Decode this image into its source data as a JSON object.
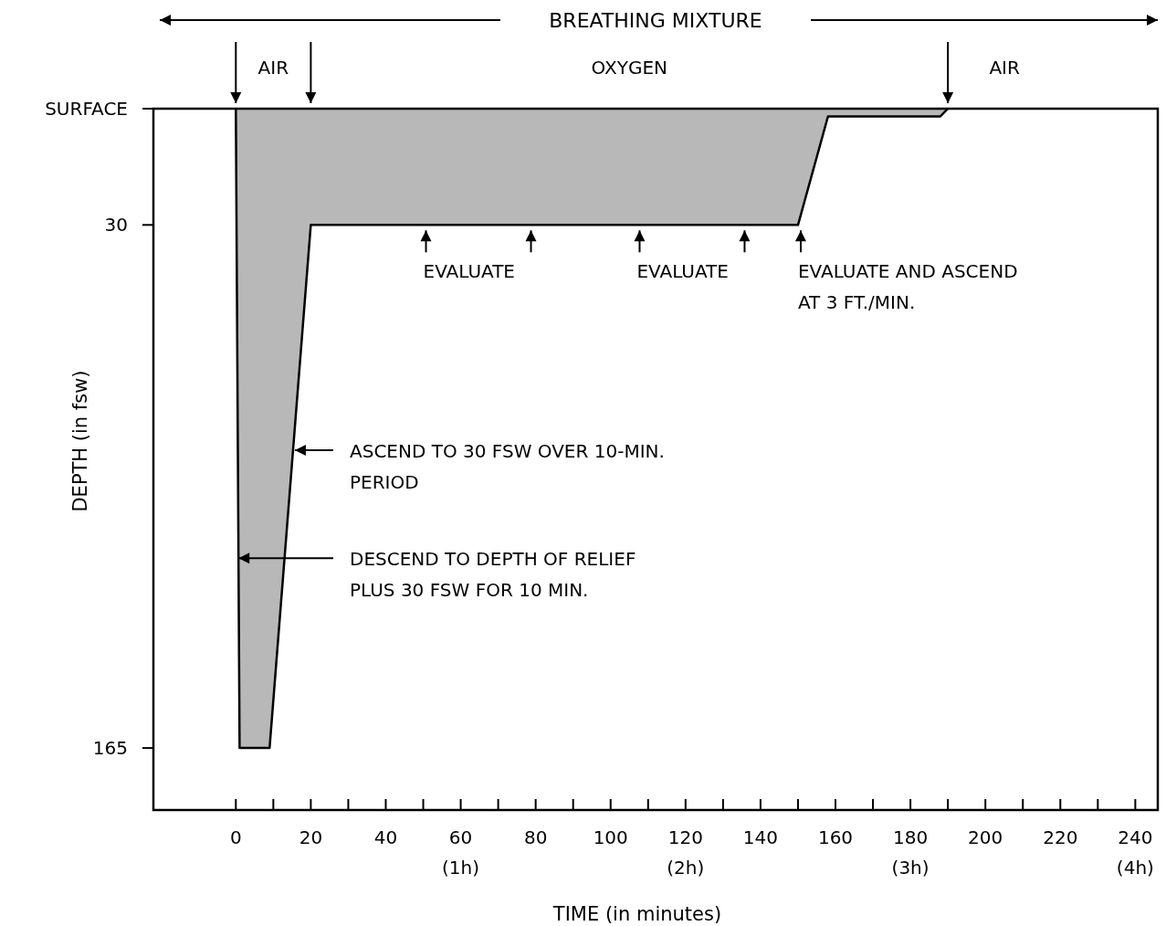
{
  "chart_data": {
    "type": "area",
    "xlabel": "TIME (in minutes)",
    "ylabel": "DEPTH (in fsw)",
    "x": [
      0,
      1,
      9,
      20,
      150,
      158,
      188,
      190
    ],
    "series": [
      {
        "color": "#b8b8b8",
        "values": [
          0,
          165,
          165,
          30,
          30,
          2,
          2,
          0
        ]
      }
    ],
    "xlim": [
      -22,
      246
    ],
    "ylim": [
      181,
      0
    ],
    "xticks": [
      {
        "value": 0,
        "label": "0"
      },
      {
        "value": 10,
        "label": null
      },
      {
        "value": 20,
        "label": "20"
      },
      {
        "value": 30,
        "label": null
      },
      {
        "value": 40,
        "label": "40"
      },
      {
        "value": 50,
        "label": null
      },
      {
        "value": 60,
        "label": "60\n(1h)"
      },
      {
        "value": 70,
        "label": null
      },
      {
        "value": 80,
        "label": "80"
      },
      {
        "value": 90,
        "label": null
      },
      {
        "value": 100,
        "label": "100"
      },
      {
        "value": 110,
        "label": null
      },
      {
        "value": 120,
        "label": "120\n(2h)"
      },
      {
        "value": 130,
        "label": null
      },
      {
        "value": 140,
        "label": "140"
      },
      {
        "value": 150,
        "label": null
      },
      {
        "value": 160,
        "label": "160"
      },
      {
        "value": 170,
        "label": null
      },
      {
        "value": 180,
        "label": "180\n(3h)"
      },
      {
        "value": 190,
        "label": null
      },
      {
        "value": 200,
        "label": "200"
      },
      {
        "value": 210,
        "label": null
      },
      {
        "value": 220,
        "label": "220"
      },
      {
        "value": 230,
        "label": null
      },
      {
        "value": 240,
        "label": "240\n(4h)"
      }
    ],
    "yticks": [
      {
        "value": 0,
        "label": "SURFACE"
      },
      30,
      165
    ],
    "grid": false,
    "annotations": [
      "BREATHING MIXTURE",
      "AIR",
      "OXYGEN",
      "AIR",
      {
        "text": "EVALUATE",
        "x": 50,
        "y": 30
      },
      {
        "text": "EVALUATE",
        "x": 107,
        "y": 30
      },
      {
        "text": "EVALUATE AND ASCEND\nAT 3 FT./MIN.",
        "x": 150,
        "y": 30
      },
      "ASCEND TO 30 FSW OVER 10-MIN.\nPERIOD",
      {
        "text": "DESCEND TO DEPTH OF RELIEF\nPLUS 30 FSW FOR 10 MIN.",
        "x": 0.7,
        "y": 116
      }
    ]
  }
}
